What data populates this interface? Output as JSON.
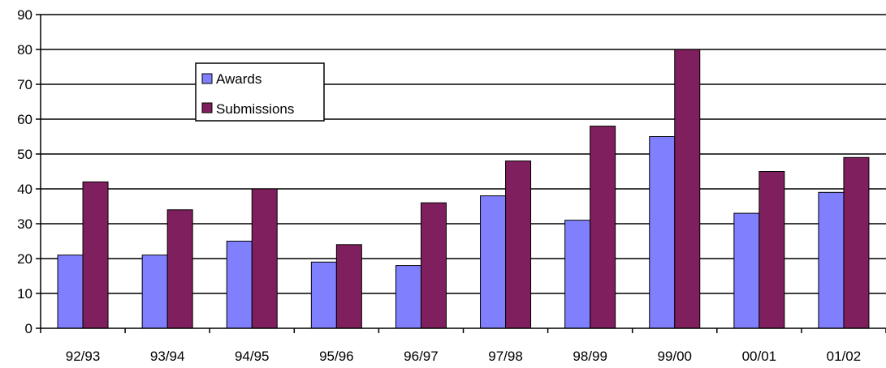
{
  "chart_data": {
    "type": "bar",
    "title": "",
    "xlabel": "",
    "ylabel": "",
    "categories": [
      "92/93",
      "93/94",
      "94/95",
      "95/96",
      "96/97",
      "97/98",
      "98/99",
      "99/00",
      "00/01",
      "01/02"
    ],
    "series": [
      {
        "name": "Awards",
        "color": "#8080ff",
        "values": [
          21,
          21,
          25,
          19,
          18,
          38,
          31,
          55,
          33,
          39
        ]
      },
      {
        "name": "Submissions",
        "color": "#7f1f5e",
        "values": [
          42,
          34,
          40,
          24,
          36,
          48,
          58,
          80,
          45,
          49
        ]
      }
    ],
    "ylim": [
      0,
      90
    ],
    "yticks": [
      0,
      10,
      20,
      30,
      40,
      50,
      60,
      70,
      80,
      90
    ],
    "grid": true,
    "legend_position": "upper-left inside plot"
  }
}
